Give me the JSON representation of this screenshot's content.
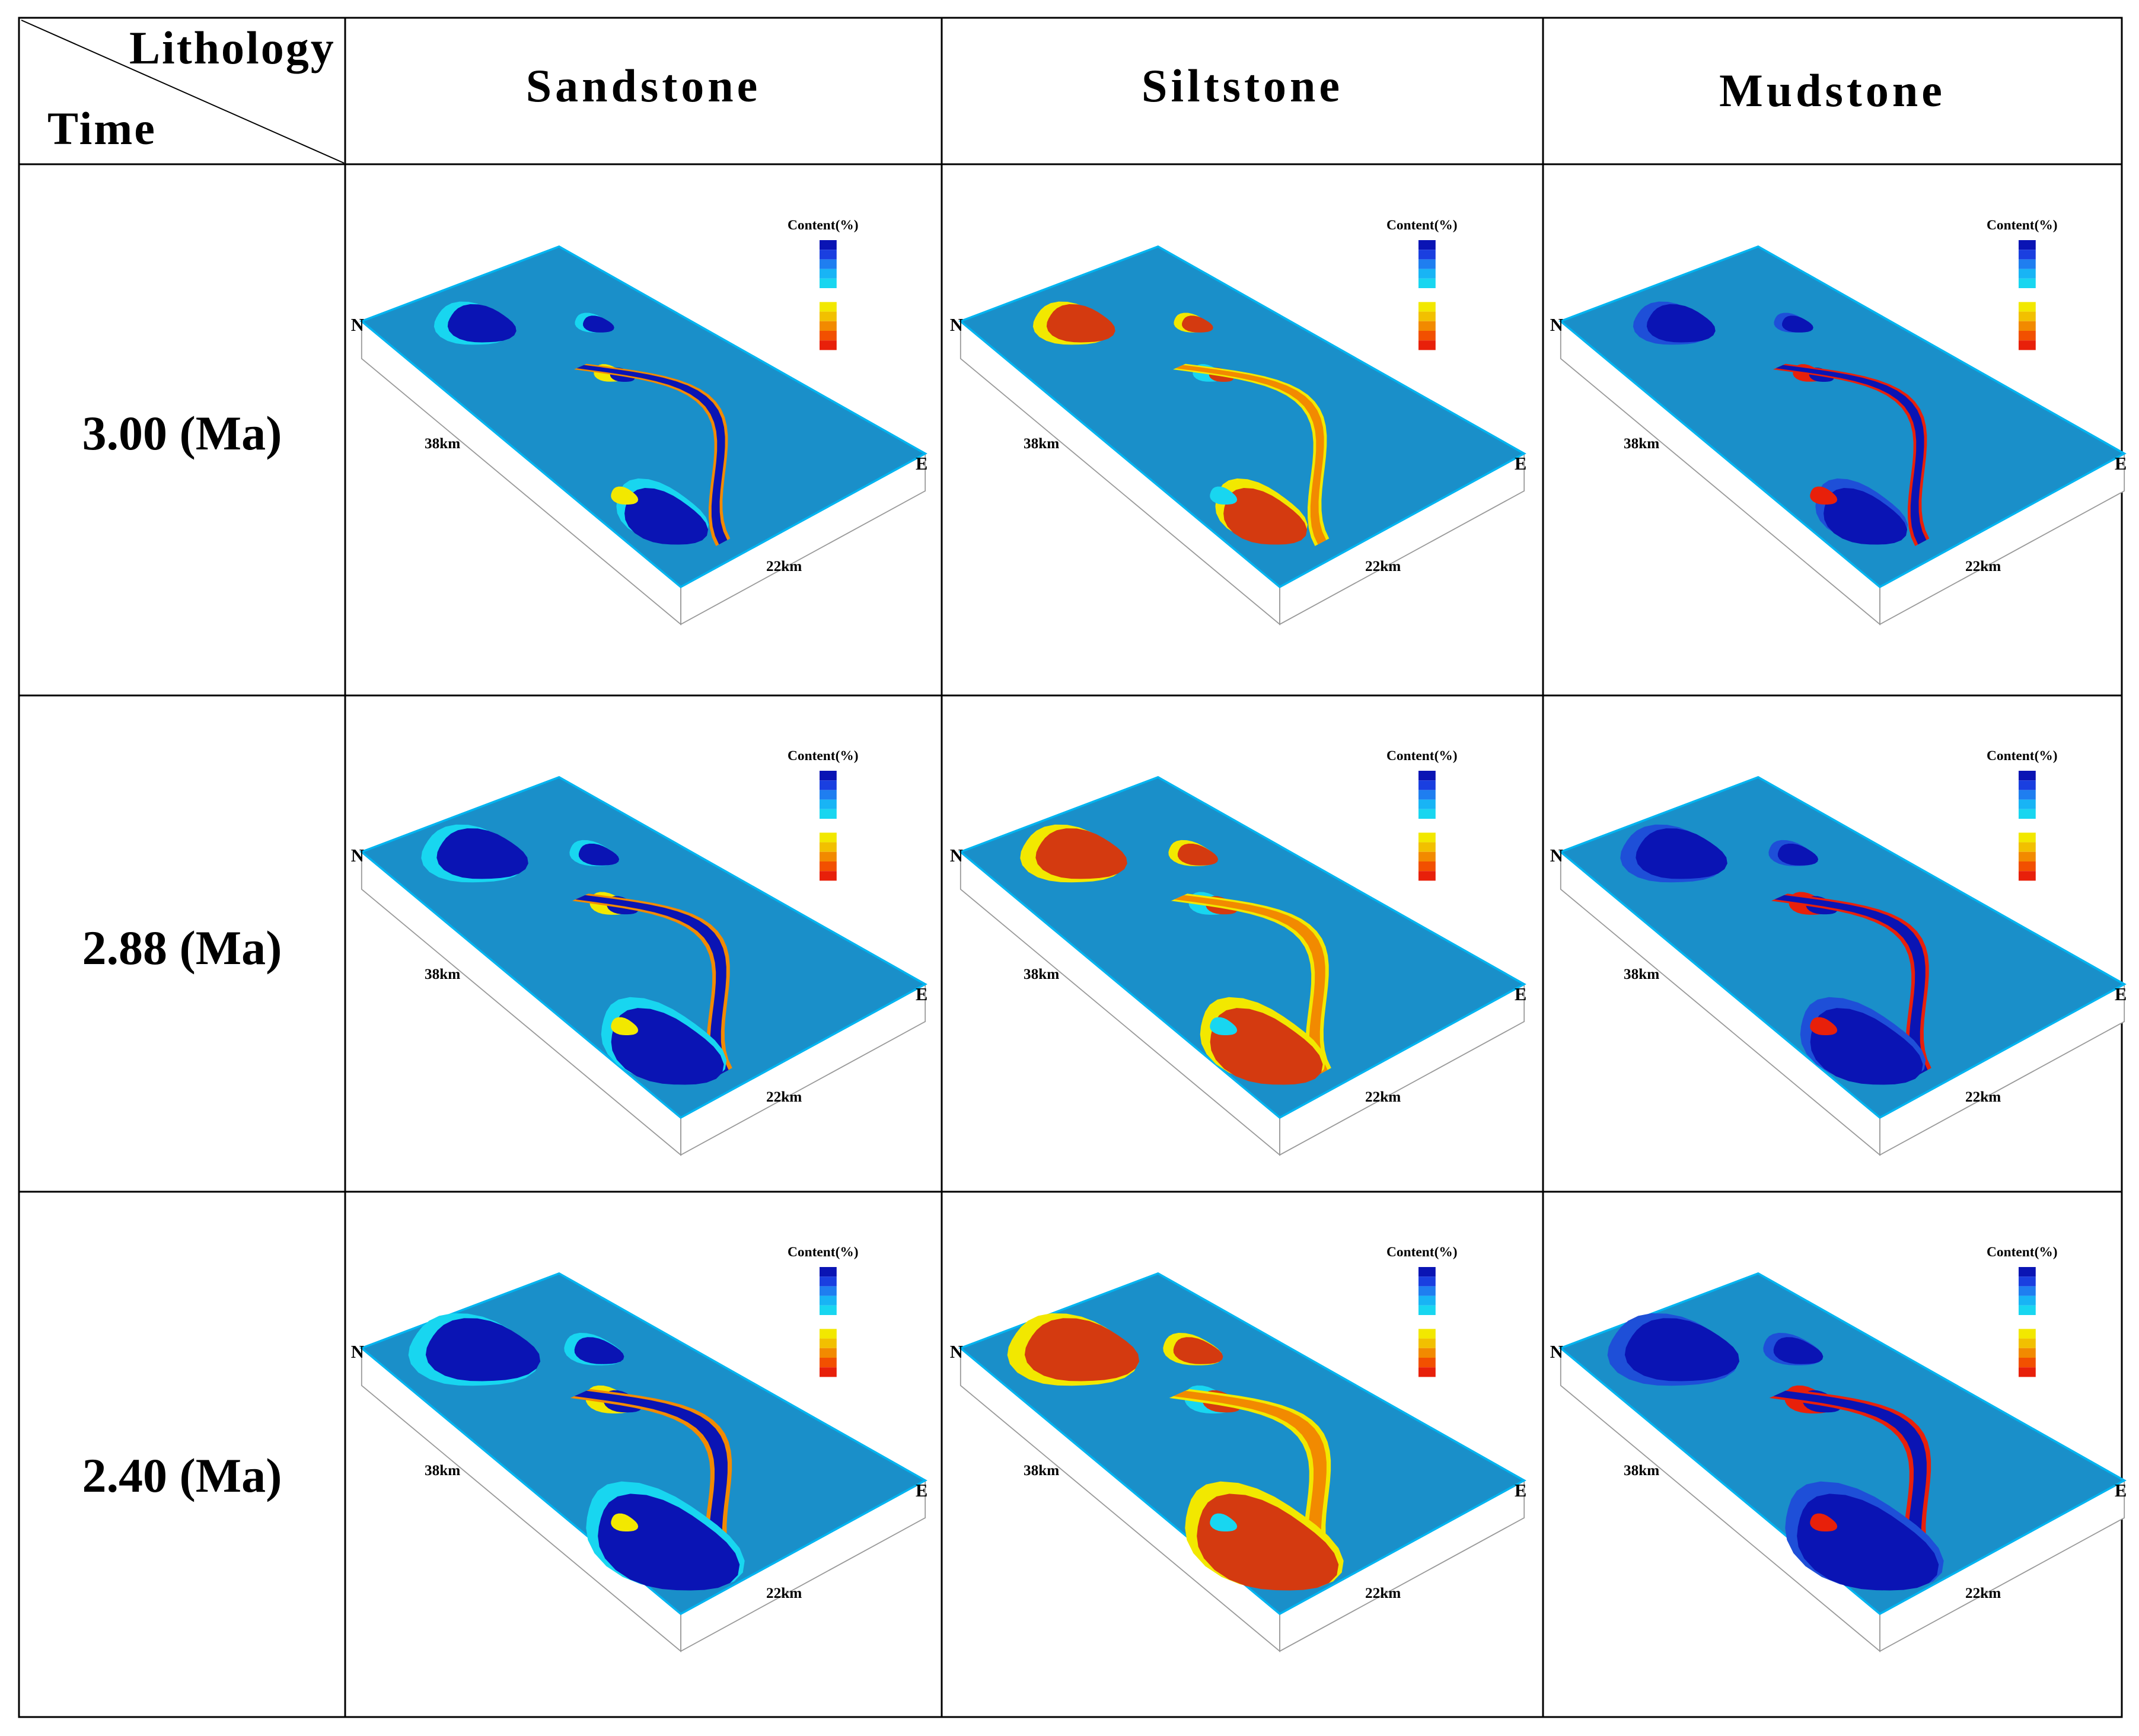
{
  "header": {
    "corner_top": "Lithology",
    "corner_bottom": "Time",
    "columns": [
      "Sandstone",
      "Siltstone",
      "Mudstone"
    ]
  },
  "rows": [
    {
      "time": "3.00 (Ma)"
    },
    {
      "time": "2.88 (Ma)"
    },
    {
      "time": "2.40 (Ma)"
    }
  ],
  "panel_labels": {
    "legend_title": "Content(%)",
    "north": "N",
    "east": "E",
    "length": "38km",
    "width": "22km"
  },
  "colors": {
    "base": "#1a8fc9",
    "deep_blue": "#0a14b4",
    "mid_blue": "#1e4fd8",
    "cyan": "#18d6f0",
    "yellow": "#f2e800",
    "orange": "#f28a00",
    "red": "#e8200a",
    "dark_red": "#d43a10",
    "edge": "#00b4f0"
  },
  "legend_swatches": [
    "#0a14b4",
    "#1a3fe0",
    "#1f7ef0",
    "#18b4f5",
    "#18d6f0",
    "#f2e800",
    "#f2c000",
    "#f28a00",
    "#f25000",
    "#e8200a"
  ]
}
